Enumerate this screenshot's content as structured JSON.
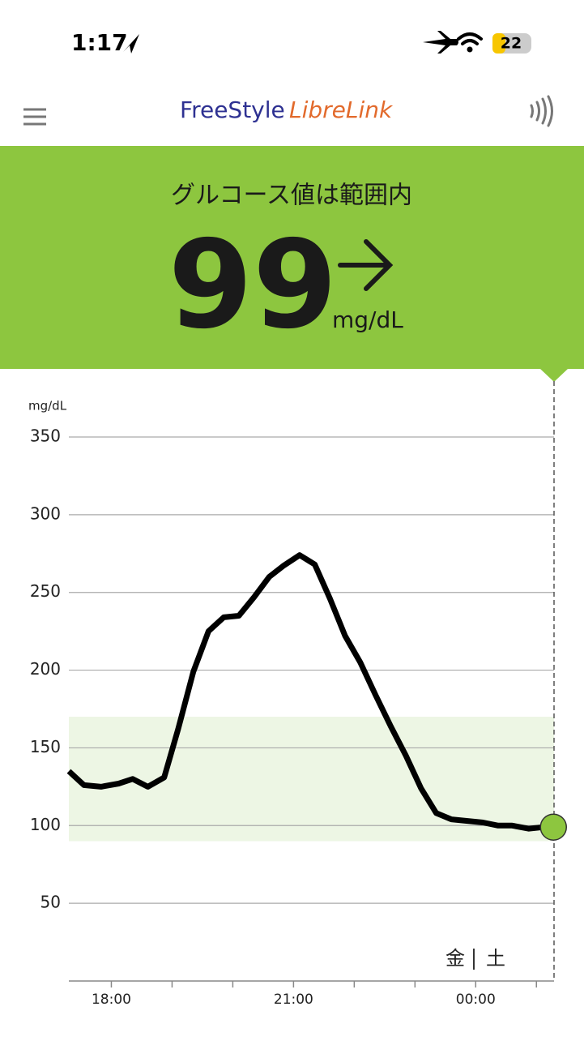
{
  "status_bar": {
    "time": "1:17",
    "battery": "22"
  },
  "header": {
    "logo_part1": "FreeStyle",
    "logo_part2": "LibreLink"
  },
  "reading": {
    "status": "グルコース値は範囲内",
    "value": 99,
    "unit": "mg/dL"
  },
  "chart_data": {
    "type": "line",
    "y_label": "mg/dL",
    "x": [
      17.3,
      17.55,
      17.83,
      18.12,
      18.35,
      18.6,
      18.87,
      19.1,
      19.35,
      19.6,
      19.85,
      20.1,
      20.35,
      20.6,
      20.83,
      21.1,
      21.35,
      21.6,
      21.85,
      22.1,
      22.35,
      22.6,
      22.85,
      23.1,
      23.35,
      23.6,
      23.85,
      24.12,
      24.37,
      24.6,
      24.87,
      25.12,
      25.28
    ],
    "series": [
      {
        "color": "#000000",
        "values": [
          135,
          126,
          125,
          127,
          130,
          125,
          131,
          162,
          199,
          225,
          234,
          235,
          247,
          260,
          267,
          274,
          268,
          246,
          222,
          205,
          184,
          164,
          145,
          124,
          108,
          104,
          103,
          102,
          100,
          100,
          98,
          99,
          99
        ]
      }
    ],
    "xlim": [
      17.3,
      25.29
    ],
    "ylim": [
      0,
      350
    ],
    "yticks": [
      50,
      100,
      150,
      200,
      250,
      300,
      350
    ],
    "xticks": [
      {
        "value": 18,
        "label": "18:00"
      },
      {
        "value": 21,
        "label": "21:00"
      },
      {
        "value": 24,
        "label": "00:00"
      }
    ],
    "minor_xticks": [
      19,
      20,
      22,
      23,
      25
    ],
    "target_range": [
      90,
      170
    ],
    "target_color": "#edf6e4",
    "grid": true,
    "day_labels": [
      "金",
      "土"
    ]
  }
}
